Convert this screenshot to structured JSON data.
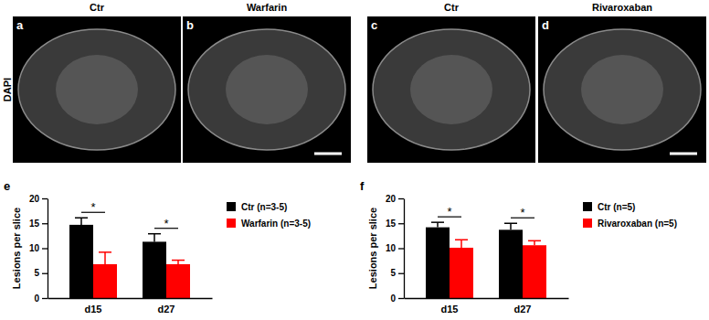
{
  "row_label": "DAPI",
  "images": [
    {
      "label": "a",
      "title": "Ctr"
    },
    {
      "label": "b",
      "title": "Warfarin"
    },
    {
      "label": "c",
      "title": "Ctr"
    },
    {
      "label": "d",
      "title": "Rivaroxaban"
    }
  ],
  "chart_data": [
    {
      "type": "bar",
      "label": "e",
      "ylabel": "Lesions per slice",
      "categories": [
        "d15",
        "d27"
      ],
      "series": [
        {
          "name": "Ctr (n=3-5)",
          "color": "#000000",
          "values": [
            14.7,
            11.3
          ],
          "errors": [
            1.4,
            1.6
          ]
        },
        {
          "name": "Warfarin (n=3-5)",
          "color": "#ff0000",
          "values": [
            6.8,
            6.8
          ],
          "errors": [
            2.4,
            0.8
          ]
        }
      ],
      "significance": [
        "*",
        "*"
      ],
      "ylim": [
        0,
        20
      ],
      "yticks": [
        0,
        5,
        10,
        15,
        20
      ],
      "legend": "right"
    },
    {
      "type": "bar",
      "label": "f",
      "ylabel": "Lesions per slice",
      "categories": [
        "d15",
        "d27"
      ],
      "series": [
        {
          "name": "Ctr (n=5)",
          "color": "#000000",
          "values": [
            14.2,
            13.7
          ],
          "errors": [
            1.0,
            1.3
          ]
        },
        {
          "name": "Rivaroxaban (n=5)",
          "color": "#ff0000",
          "values": [
            10.1,
            10.6
          ],
          "errors": [
            1.6,
            0.9
          ]
        }
      ],
      "significance": [
        "*",
        "*"
      ],
      "ylim": [
        0,
        20
      ],
      "yticks": [
        0,
        5,
        10,
        15,
        20
      ],
      "legend": "right"
    }
  ]
}
